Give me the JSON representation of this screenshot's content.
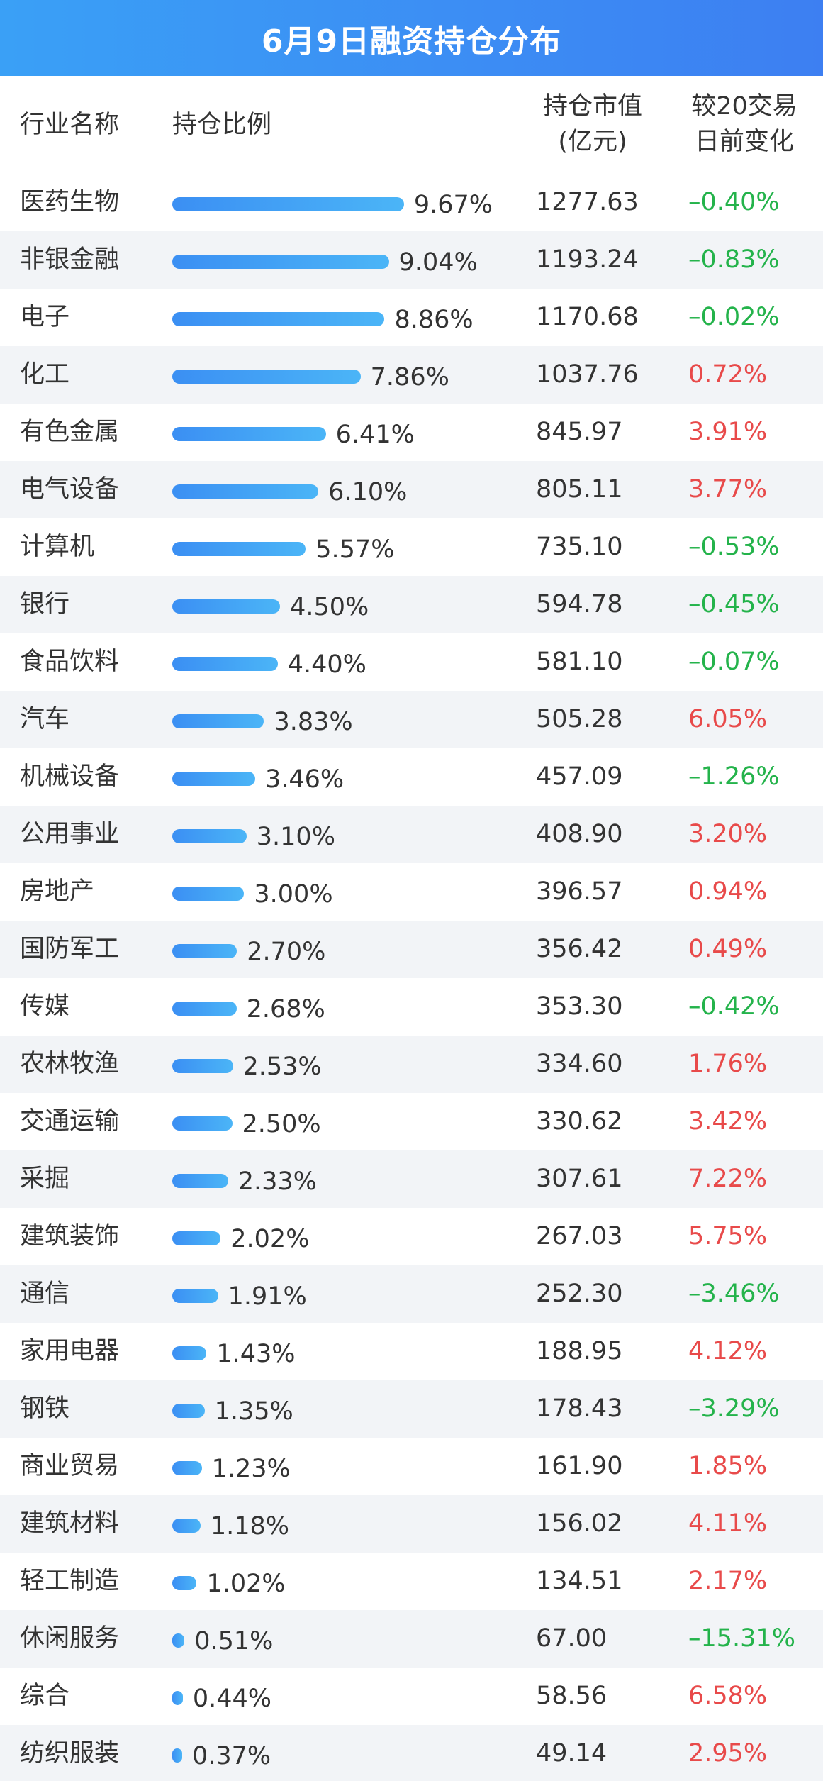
{
  "title": "6月9日融资持仓分布",
  "header": {
    "name": "行业名称",
    "ratio": "持仓比例",
    "value_line1": "持仓市值",
    "value_line2": "(亿元)",
    "change_line1": "较20交易",
    "change_line2": "日前变化"
  },
  "colors": {
    "title_bg": "#3d8ff4",
    "bar": "#3b9af5",
    "positive": "#e84a4a",
    "negative": "#24b34b",
    "alt_row": "#f2f4f7"
  },
  "chart_data": {
    "type": "table",
    "columns": [
      "行业名称",
      "持仓比例",
      "持仓市值(亿元)",
      "较20交易日前变化"
    ],
    "rows": [
      {
        "name": "医药生物",
        "ratio": 9.67,
        "ratio_label": "9.67%",
        "value": "1277.63",
        "change": "–0.40%",
        "sign": "neg"
      },
      {
        "name": "非银金融",
        "ratio": 9.04,
        "ratio_label": "9.04%",
        "value": "1193.24",
        "change": "–0.83%",
        "sign": "neg"
      },
      {
        "name": "电子",
        "ratio": 8.86,
        "ratio_label": "8.86%",
        "value": "1170.68",
        "change": "–0.02%",
        "sign": "neg"
      },
      {
        "name": "化工",
        "ratio": 7.86,
        "ratio_label": "7.86%",
        "value": "1037.76",
        "change": "0.72%",
        "sign": "pos"
      },
      {
        "name": "有色金属",
        "ratio": 6.41,
        "ratio_label": "6.41%",
        "value": "845.97",
        "change": "3.91%",
        "sign": "pos"
      },
      {
        "name": "电气设备",
        "ratio": 6.1,
        "ratio_label": "6.10%",
        "value": "805.11",
        "change": "3.77%",
        "sign": "pos"
      },
      {
        "name": "计算机",
        "ratio": 5.57,
        "ratio_label": "5.57%",
        "value": "735.10",
        "change": "–0.53%",
        "sign": "neg"
      },
      {
        "name": "银行",
        "ratio": 4.5,
        "ratio_label": "4.50%",
        "value": "594.78",
        "change": "–0.45%",
        "sign": "neg"
      },
      {
        "name": "食品饮料",
        "ratio": 4.4,
        "ratio_label": "4.40%",
        "value": "581.10",
        "change": "–0.07%",
        "sign": "neg"
      },
      {
        "name": "汽车",
        "ratio": 3.83,
        "ratio_label": "3.83%",
        "value": "505.28",
        "change": "6.05%",
        "sign": "pos"
      },
      {
        "name": "机械设备",
        "ratio": 3.46,
        "ratio_label": "3.46%",
        "value": "457.09",
        "change": "–1.26%",
        "sign": "neg"
      },
      {
        "name": "公用事业",
        "ratio": 3.1,
        "ratio_label": "3.10%",
        "value": "408.90",
        "change": "3.20%",
        "sign": "pos"
      },
      {
        "name": "房地产",
        "ratio": 3.0,
        "ratio_label": "3.00%",
        "value": "396.57",
        "change": "0.94%",
        "sign": "pos"
      },
      {
        "name": "国防军工",
        "ratio": 2.7,
        "ratio_label": "2.70%",
        "value": "356.42",
        "change": "0.49%",
        "sign": "pos"
      },
      {
        "name": "传媒",
        "ratio": 2.68,
        "ratio_label": "2.68%",
        "value": "353.30",
        "change": "–0.42%",
        "sign": "neg"
      },
      {
        "name": "农林牧渔",
        "ratio": 2.53,
        "ratio_label": "2.53%",
        "value": "334.60",
        "change": "1.76%",
        "sign": "pos"
      },
      {
        "name": "交通运输",
        "ratio": 2.5,
        "ratio_label": "2.50%",
        "value": "330.62",
        "change": "3.42%",
        "sign": "pos"
      },
      {
        "name": "采掘",
        "ratio": 2.33,
        "ratio_label": "2.33%",
        "value": "307.61",
        "change": "7.22%",
        "sign": "pos"
      },
      {
        "name": "建筑装饰",
        "ratio": 2.02,
        "ratio_label": "2.02%",
        "value": "267.03",
        "change": "5.75%",
        "sign": "pos"
      },
      {
        "name": "通信",
        "ratio": 1.91,
        "ratio_label": "1.91%",
        "value": "252.30",
        "change": "–3.46%",
        "sign": "neg"
      },
      {
        "name": "家用电器",
        "ratio": 1.43,
        "ratio_label": "1.43%",
        "value": "188.95",
        "change": "4.12%",
        "sign": "pos"
      },
      {
        "name": "钢铁",
        "ratio": 1.35,
        "ratio_label": "1.35%",
        "value": "178.43",
        "change": "–3.29%",
        "sign": "neg"
      },
      {
        "name": "商业贸易",
        "ratio": 1.23,
        "ratio_label": "1.23%",
        "value": "161.90",
        "change": "1.85%",
        "sign": "pos"
      },
      {
        "name": "建筑材料",
        "ratio": 1.18,
        "ratio_label": "1.18%",
        "value": "156.02",
        "change": "4.11%",
        "sign": "pos"
      },
      {
        "name": "轻工制造",
        "ratio": 1.02,
        "ratio_label": "1.02%",
        "value": "134.51",
        "change": "2.17%",
        "sign": "pos"
      },
      {
        "name": "休闲服务",
        "ratio": 0.51,
        "ratio_label": "0.51%",
        "value": "67.00",
        "change": "–15.31%",
        "sign": "neg"
      },
      {
        "name": "综合",
        "ratio": 0.44,
        "ratio_label": "0.44%",
        "value": "58.56",
        "change": "6.58%",
        "sign": "pos"
      },
      {
        "name": "纺织服装",
        "ratio": 0.37,
        "ratio_label": "0.37%",
        "value": "49.14",
        "change": "2.95%",
        "sign": "pos"
      }
    ]
  }
}
